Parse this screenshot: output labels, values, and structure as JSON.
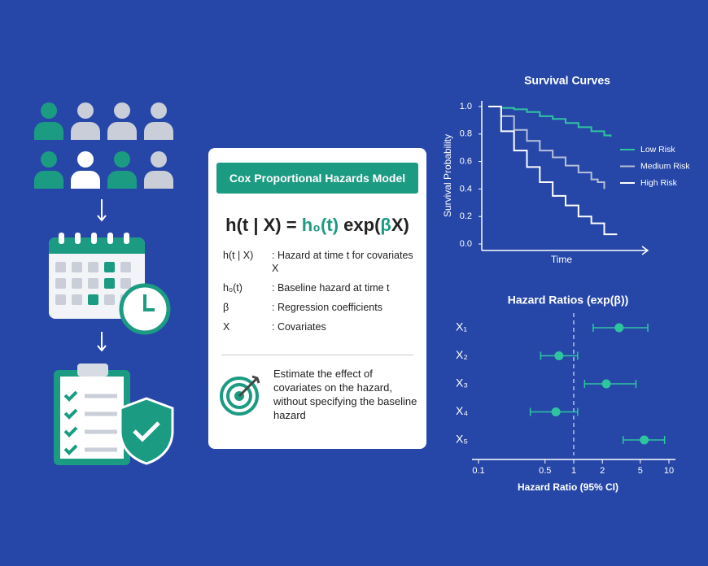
{
  "card": {
    "title": "Cox Proportional Hazards Model",
    "formula": [
      {
        "text": "h(t | X) = "
      },
      {
        "text": "h₀(t)",
        "color": "#1c9b83"
      },
      {
        "text": " exp("
      },
      {
        "text": "β",
        "color": "#1c9b83"
      },
      {
        "text": "X)"
      }
    ],
    "terms": [
      [
        "h(t | X)",
        ": Hazard at time t for covariates X"
      ],
      [
        "h₀(t)",
        ": Baseline hazard at time t"
      ],
      [
        "β",
        ": Regression coefficients"
      ],
      [
        "X",
        ": Covariates"
      ]
    ],
    "note": "Estimate the effect of covariates on the hazard, without specifying the baseline hazard"
  },
  "chart_data": [
    {
      "type": "line",
      "step": true,
      "title": "Survival Curves",
      "x_label": "Time",
      "y_label": "Survival Probability",
      "xlim": [
        0,
        12
      ],
      "ylim": [
        0,
        1
      ],
      "yticks": [
        {
          "value": 0,
          "label": "0.0"
        },
        0.2,
        0.4,
        0.6,
        0.8,
        {
          "value": 1,
          "label": "1.0"
        }
      ],
      "series": [
        {
          "name": "Low Risk",
          "color": "#2ec4a0",
          "x": [
            0,
            1,
            2,
            3,
            4,
            5,
            6,
            7,
            8,
            9,
            9.5
          ],
          "values": [
            1.0,
            0.99,
            0.98,
            0.96,
            0.93,
            0.91,
            0.88,
            0.85,
            0.82,
            0.79,
            0.78
          ]
        },
        {
          "name": "Medium Risk",
          "color": "#b8c0d8",
          "x": [
            0,
            1,
            2,
            3,
            4,
            5,
            6,
            7,
            8,
            8.5,
            9
          ],
          "values": [
            1.0,
            0.93,
            0.83,
            0.75,
            0.68,
            0.63,
            0.57,
            0.52,
            0.47,
            0.45,
            0.4
          ]
        },
        {
          "name": "High Risk",
          "color": "#ffffff",
          "x": [
            0,
            1,
            2,
            3,
            4,
            5,
            6,
            7,
            8,
            9,
            10
          ],
          "values": [
            1.0,
            0.82,
            0.68,
            0.56,
            0.45,
            0.35,
            0.28,
            0.2,
            0.15,
            0.07,
            0.07
          ]
        }
      ]
    },
    {
      "type": "forest",
      "title": "Hazard Ratios (exp(β))",
      "x_label": "Hazard Ratio (95% CI)",
      "log_x": true,
      "reference": 1,
      "xlim": [
        0.1,
        10
      ],
      "xticks": [
        0.1,
        0.5,
        1,
        2,
        5,
        10
      ],
      "color": "#2ec4a0",
      "categories": [
        "X₁",
        "X₂",
        "X₃",
        "X₄",
        "X₅"
      ],
      "values": [
        3.0,
        0.7,
        2.2,
        0.65,
        5.5
      ],
      "lower": [
        1.6,
        0.45,
        1.3,
        0.35,
        3.3
      ],
      "upper": [
        6.0,
        1.1,
        4.5,
        1.1,
        9.0
      ]
    }
  ]
}
